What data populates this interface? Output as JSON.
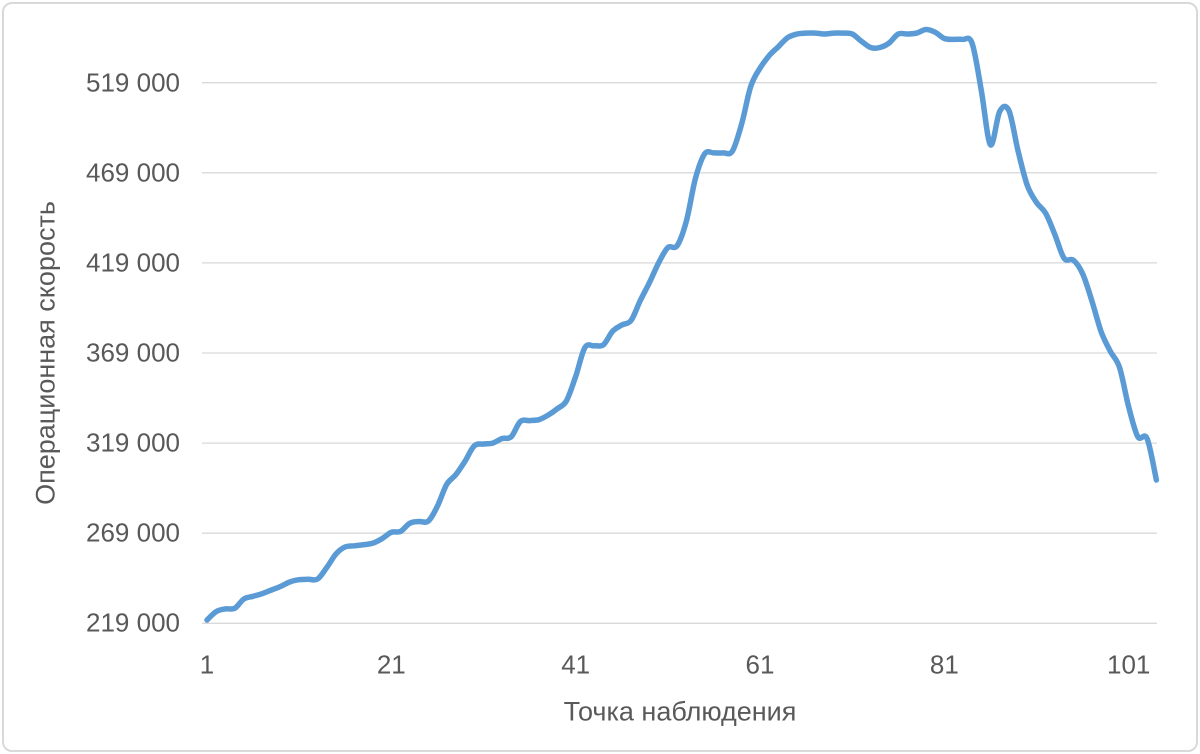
{
  "chart": {
    "y_axis_title": "Операционная скорость",
    "x_axis_title": "Точка наблюдения",
    "line_color": "#5B9BD5",
    "grid_color": "#D9D9D9",
    "border_color": "#D9D9D9",
    "text_color": "#595959",
    "background_color": "#FFFFFF",
    "y_ticks": [
      {
        "value": 219000,
        "label": "219 000"
      },
      {
        "value": 269000,
        "label": "269 000"
      },
      {
        "value": 319000,
        "label": "319 000"
      },
      {
        "value": 369000,
        "label": "369 000"
      },
      {
        "value": 419000,
        "label": "419 000"
      },
      {
        "value": 469000,
        "label": "469 000"
      },
      {
        "value": 519000,
        "label": "519 000"
      }
    ],
    "x_ticks": [
      1,
      21,
      41,
      61,
      81,
      101
    ]
  },
  "chart_data": {
    "type": "line",
    "title": "",
    "xlabel": "Точка наблюдения",
    "ylabel": "Операционная скорость",
    "legend": "none",
    "grid": "horizontal",
    "smoothed": true,
    "x_start": 1,
    "x_step": 1,
    "xlim": [
      1,
      104
    ],
    "ylim": [
      219000,
      569000
    ],
    "series": [
      {
        "name": "Операционная скорость",
        "values": [
          220800,
          225500,
          227000,
          227300,
          232500,
          234000,
          235500,
          237500,
          239500,
          242000,
          243200,
          243400,
          243600,
          250000,
          257500,
          261400,
          262000,
          262600,
          263500,
          266000,
          269500,
          270000,
          274500,
          275500,
          275700,
          284000,
          296000,
          301500,
          309000,
          317500,
          318500,
          319000,
          321500,
          322500,
          331000,
          331500,
          332000,
          334500,
          338000,
          342500,
          356000,
          372000,
          373000,
          373500,
          381000,
          384500,
          387000,
          398000,
          408000,
          419000,
          427500,
          428500,
          442000,
          466000,
          479500,
          480000,
          480000,
          481000,
          496000,
          517000,
          527000,
          534000,
          539000,
          544000,
          546000,
          546500,
          546500,
          546000,
          546500,
          546500,
          546000,
          542000,
          538500,
          538500,
          541000,
          546000,
          546000,
          546500,
          548500,
          547000,
          543500,
          543000,
          543000,
          541000,
          515000,
          484500,
          503000,
          503500,
          481000,
          462000,
          452500,
          446500,
          434500,
          421500,
          420500,
          413000,
          398000,
          381000,
          370000,
          361000,
          339000,
          322500,
          321500,
          298500
        ]
      }
    ]
  }
}
